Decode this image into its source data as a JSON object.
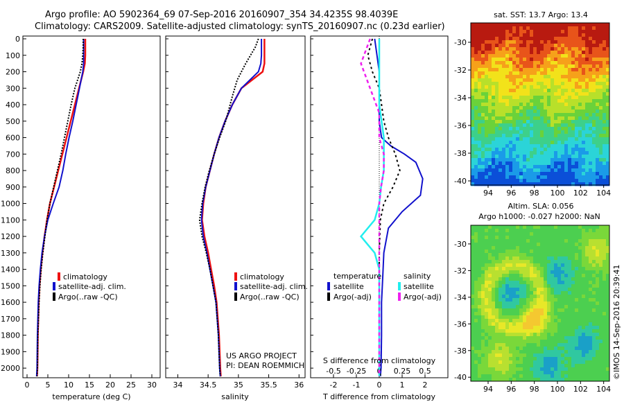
{
  "title_line1": "Argo profile: AO 5902364_69 07-Sep-2016 20160907_354 34.4235S 98.4039E",
  "title_line2": "Climatology: CARS2009. Satellite-adjusted climatology: synTS_20160907.nc (0.23d earlier)",
  "sst_title": "sat. SST: 13.7 Argo: 13.4",
  "sla_title_line1": "Altim. SLA: 0.056",
  "sla_title_line2": "Argo h1000: -0.027 h2000: NaN",
  "credit": "©IMOS 14-Sep-2016 20:39:41",
  "project_line1": "US ARGO PROJECT",
  "project_line2": "PI: DEAN ROEMMICH",
  "colors": {
    "climatology": "#ee1111",
    "satellite": "#1111cc",
    "argo": "#000000",
    "sal_satellite": "#22eeee",
    "sal_argo": "#ee22ee"
  },
  "chart_data": [
    {
      "type": "line",
      "xlabel": "temperature (deg C)",
      "ylabel": "",
      "xlim": [
        -1,
        32
      ],
      "ylim": [
        2050,
        0
      ],
      "xticks": [
        "0",
        "5",
        "10",
        "15",
        "20",
        "25",
        "30"
      ],
      "yticks": [
        "0",
        "100",
        "200",
        "300",
        "400",
        "500",
        "600",
        "700",
        "800",
        "900",
        "1000",
        "1100",
        "1200",
        "1300",
        "1400",
        "1500",
        "1600",
        "1700",
        "1800",
        "1900",
        "2000"
      ],
      "legend": [
        "climatology",
        "satellite-adj. clim.",
        "Argo(..raw -QC)"
      ],
      "series": [
        {
          "name": "climatology",
          "x": [
            14.0,
            14.0,
            14.0,
            13.9,
            13.5,
            12.5,
            11.5,
            10.5,
            9.5,
            8.5,
            7.5,
            6.5,
            5.5,
            4.8,
            4.2,
            3.7,
            3.3,
            3.0,
            2.8,
            2.6,
            2.5,
            2.4
          ],
          "y": [
            0,
            50,
            100,
            150,
            200,
            300,
            400,
            500,
            600,
            700,
            800,
            900,
            1000,
            1100,
            1200,
            1300,
            1400,
            1500,
            1600,
            1800,
            2000,
            2050
          ]
        },
        {
          "name": "satellite-adj. clim.",
          "x": [
            13.6,
            13.6,
            13.6,
            13.6,
            13.4,
            12.6,
            11.8,
            11.0,
            10.1,
            9.3,
            8.6,
            7.7,
            6.3,
            5.0,
            4.2,
            3.6,
            3.2,
            2.9,
            2.7,
            2.5,
            2.4,
            2.3
          ],
          "y": [
            0,
            50,
            100,
            150,
            200,
            300,
            400,
            500,
            600,
            700,
            800,
            900,
            1000,
            1100,
            1200,
            1300,
            1400,
            1500,
            1600,
            1800,
            2000,
            2050
          ]
        },
        {
          "name": "Argo(..raw -QC)",
          "x": [
            13.5,
            13.5,
            13.4,
            13.2,
            12.8,
            11.5,
            10.6,
            9.8,
            9.0,
            8.2,
            7.3,
            6.4,
            5.5,
            4.8,
            4.3,
            3.8,
            3.4,
            3.1,
            2.9,
            2.6,
            2.5,
            2.4
          ],
          "y": [
            0,
            50,
            100,
            150,
            200,
            300,
            400,
            500,
            600,
            700,
            800,
            900,
            1000,
            1100,
            1200,
            1300,
            1400,
            1500,
            1600,
            1800,
            2000,
            2050
          ]
        }
      ]
    },
    {
      "type": "line",
      "xlabel": "salinity",
      "ylabel": "",
      "xlim": [
        33.8,
        36.1
      ],
      "ylim": [
        2050,
        0
      ],
      "xticks": [
        "34",
        "34.5",
        "35",
        "35.5",
        "36"
      ],
      "legend": [
        "climatology",
        "satellite-adj. clim.",
        "Argo(..raw -QC)"
      ],
      "series": [
        {
          "name": "climatology",
          "x": [
            35.43,
            35.43,
            35.43,
            35.43,
            35.4,
            35.05,
            34.9,
            34.78,
            34.68,
            34.6,
            34.53,
            34.46,
            34.42,
            34.4,
            34.44,
            34.5,
            34.55,
            34.6,
            34.64,
            34.68,
            34.7,
            34.71
          ],
          "y": [
            0,
            50,
            100,
            150,
            200,
            300,
            400,
            500,
            600,
            700,
            800,
            900,
            1000,
            1100,
            1200,
            1300,
            1400,
            1500,
            1600,
            1800,
            2000,
            2050
          ]
        },
        {
          "name": "satellite-adj. clim.",
          "x": [
            35.38,
            35.38,
            35.38,
            35.37,
            35.33,
            35.05,
            34.9,
            34.78,
            34.68,
            34.6,
            34.53,
            34.46,
            34.41,
            34.39,
            34.42,
            34.48,
            34.53,
            34.58,
            34.63,
            34.67,
            34.69,
            34.7
          ],
          "y": [
            0,
            50,
            100,
            150,
            200,
            300,
            400,
            500,
            600,
            700,
            800,
            900,
            1000,
            1100,
            1200,
            1300,
            1400,
            1500,
            1600,
            1800,
            2000,
            2050
          ]
        },
        {
          "name": "Argo(..raw -QC)",
          "x": [
            35.33,
            35.28,
            35.2,
            35.12,
            35.05,
            34.98,
            34.9,
            34.79,
            34.69,
            34.6,
            34.52,
            34.45,
            34.4,
            34.36,
            34.4,
            34.47,
            34.53,
            34.58,
            34.63,
            34.67,
            34.69,
            34.7
          ],
          "y": [
            0,
            50,
            100,
            150,
            200,
            250,
            350,
            500,
            600,
            700,
            800,
            900,
            1000,
            1100,
            1200,
            1300,
            1400,
            1500,
            1600,
            1800,
            2000,
            2050
          ]
        }
      ]
    },
    {
      "type": "line",
      "xlabel": "T difference from climatology",
      "ylabel": "",
      "title": "S difference from climatology",
      "xlim": [
        -3,
        3
      ],
      "ylim": [
        2050,
        0
      ],
      "xticks": [
        "-2",
        "-1",
        "0",
        "1",
        "2"
      ],
      "top_ticks": [
        "-0.5",
        "-0.25",
        "0",
        "0.25",
        "0.5"
      ],
      "legend_headers": [
        "temperature",
        "salinity"
      ],
      "legend": [
        "satellite",
        "Argo(-adj)",
        "satellite",
        "Argo(-adj)"
      ],
      "series": [
        {
          "name": "satellite",
          "x": [
            -0.2,
            -0.1,
            0.0,
            0.0,
            0.0,
            0.0,
            0.05,
            0.1,
            0.5,
            1.1,
            1.6,
            1.9,
            1.8,
            1.0,
            0.4,
            0.2,
            0.15,
            0.1,
            0.1,
            0.08,
            0.05
          ],
          "y": [
            0,
            100,
            200,
            300,
            400,
            500,
            550,
            600,
            650,
            700,
            750,
            850,
            950,
            1050,
            1150,
            1300,
            1450,
            1600,
            1800,
            2000,
            2050
          ]
        },
        {
          "name": "Argo(-adj)",
          "x": [
            -0.3,
            -0.5,
            -0.3,
            0.0,
            0.1,
            0.2,
            0.4,
            0.7,
            0.9,
            0.6,
            0.2,
            0.05,
            0.0,
            0.0,
            0.0,
            0.0,
            0.05
          ],
          "y": [
            0,
            100,
            200,
            300,
            400,
            500,
            600,
            700,
            800,
            900,
            1000,
            1100,
            1300,
            1500,
            1700,
            1900,
            2050
          ]
        },
        {
          "name": "satellite",
          "x": [
            0.0,
            0.0,
            0.0,
            0.05,
            0.05,
            0.02,
            0.0,
            -0.05,
            -0.2,
            -0.05,
            0.0,
            0.0,
            0.0,
            0.0
          ],
          "y": [
            0,
            200,
            400,
            600,
            800,
            900,
            1000,
            1100,
            1200,
            1300,
            1400,
            1600,
            1800,
            2050
          ]
        },
        {
          "name": "Argo(-adj)",
          "x": [
            -0.1,
            -0.2,
            -0.1,
            0.0,
            0.0,
            0.05,
            0.05,
            0.02,
            0.0,
            0.0,
            0.0,
            0.0,
            0.0
          ],
          "y": [
            0,
            150,
            300,
            450,
            600,
            700,
            800,
            900,
            1000,
            1200,
            1500,
            1800,
            2050
          ]
        }
      ]
    },
    {
      "type": "heatmap",
      "xticks": [
        "94",
        "96",
        "98",
        "100",
        "102",
        "104"
      ],
      "yticks": [
        "-30",
        "-32",
        "-34",
        "-36",
        "-38",
        "-40"
      ],
      "xlim": [
        92.5,
        104.5
      ],
      "ylim": [
        -40.3,
        -28.6
      ],
      "colormap": [
        "#0b4fd8",
        "#1a9be8",
        "#2bd4d8",
        "#3dd08a",
        "#6ad23a",
        "#b8e02a",
        "#f2e21a",
        "#f6a11a",
        "#e8541a",
        "#b81a10"
      ]
    },
    {
      "type": "heatmap",
      "xticks": [
        "94",
        "96",
        "98",
        "100",
        "102",
        "104"
      ],
      "yticks": [
        "-30",
        "-32",
        "-34",
        "-36",
        "-38",
        "-40"
      ],
      "xlim": [
        92.5,
        104.5
      ],
      "ylim": [
        -40.3,
        -28.6
      ]
    }
  ]
}
